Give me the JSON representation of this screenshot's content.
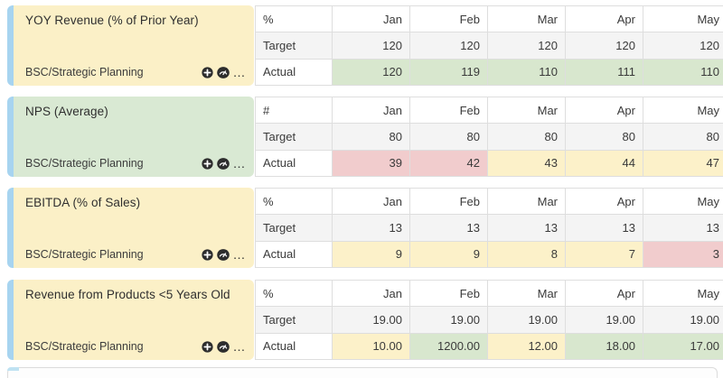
{
  "months": [
    "Jan",
    "Feb",
    "Mar",
    "Apr",
    "May"
  ],
  "row_labels": {
    "target": "Target",
    "actual": "Actual"
  },
  "icons": {
    "add": "plus-in-circle",
    "gauge": "gauge-speedometer",
    "more": "…"
  },
  "colors": {
    "card_yellow": "#fbf0c7",
    "card_green": "#d9e9d3",
    "stripe_blue": "#a7d4f0",
    "cell_green": "#d8e7ce",
    "cell_yellow": "#fcf1c9",
    "cell_red": "#f1cccd",
    "target_gray": "#f4f4f4",
    "header_white": "#ffffff",
    "grid_line": "#dedede"
  },
  "blocks": [
    {
      "title": "YOY Revenue (% of Prior Year)",
      "category": "BSC/Strategic Planning",
      "unit": "%",
      "card": "card_yellow",
      "target": [
        "120",
        "120",
        "120",
        "120",
        "120"
      ],
      "actual": [
        "120",
        "119",
        "110",
        "111",
        "110"
      ],
      "actual_status": [
        "green",
        "green",
        "green",
        "green",
        "green"
      ]
    },
    {
      "title": "NPS (Average)",
      "category": "BSC/Strategic Planning",
      "unit": "#",
      "card": "card_green",
      "target": [
        "80",
        "80",
        "80",
        "80",
        "80"
      ],
      "actual": [
        "39",
        "42",
        "43",
        "44",
        "47"
      ],
      "actual_status": [
        "red",
        "red",
        "yellow",
        "yellow",
        "yellow"
      ]
    },
    {
      "title": "EBITDA (% of Sales)",
      "category": "BSC/Strategic Planning",
      "unit": "%",
      "card": "card_yellow",
      "target": [
        "13",
        "13",
        "13",
        "13",
        "13"
      ],
      "actual": [
        "9",
        "9",
        "8",
        "7",
        "3"
      ],
      "actual_status": [
        "yellow",
        "yellow",
        "yellow",
        "yellow",
        "red"
      ]
    },
    {
      "title": "Revenue from Products <5 Years Old",
      "category": "BSC/Strategic Planning",
      "unit": "%",
      "card": "card_yellow",
      "target": [
        "19.00",
        "19.00",
        "19.00",
        "19.00",
        "19.00"
      ],
      "actual": [
        "10.00",
        "1200.00",
        "12.00",
        "18.00",
        "17.00"
      ],
      "actual_status": [
        "yellow",
        "green",
        "yellow",
        "green",
        "green"
      ]
    }
  ]
}
